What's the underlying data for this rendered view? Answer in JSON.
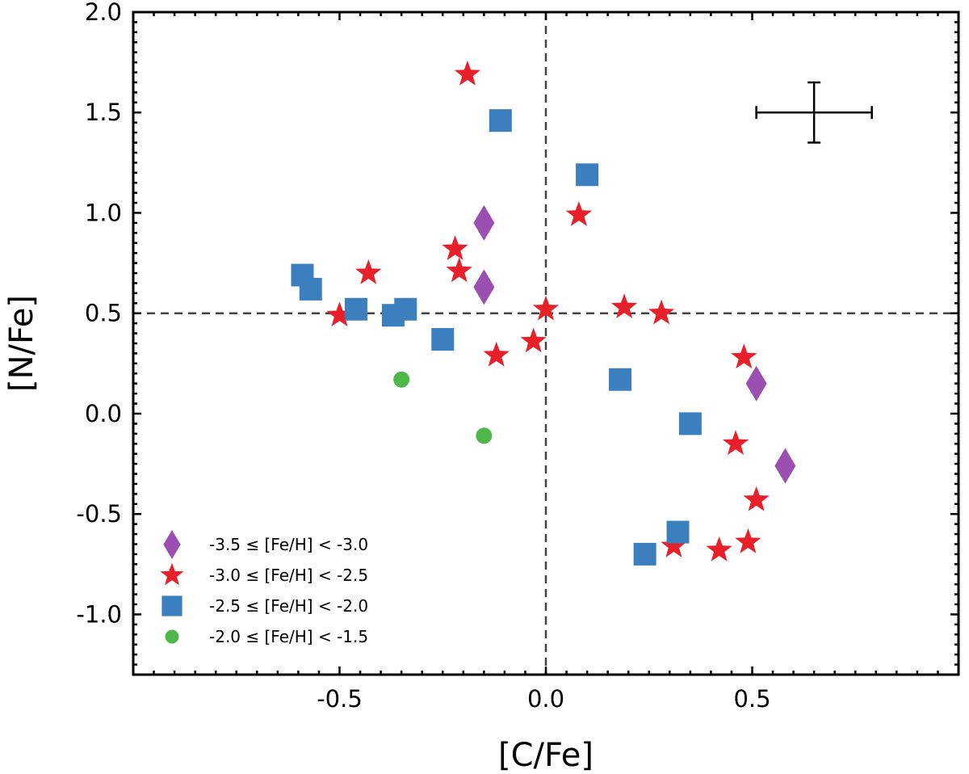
{
  "chart_data": {
    "type": "scatter",
    "title": "",
    "xlabel": "[C/Fe]",
    "ylabel": "[N/Fe]",
    "xlim": [
      -1.0,
      1.0
    ],
    "ylim": [
      -1.3,
      2.0
    ],
    "xticks": [
      -0.5,
      0.0,
      0.5
    ],
    "xtick_labels": [
      "-0.5",
      "0.0",
      "0.5"
    ],
    "yticks": [
      -1.0,
      -0.5,
      0.0,
      0.5,
      1.0,
      1.5,
      2.0
    ],
    "ytick_labels": [
      "-1.0",
      "-0.5",
      "0.0",
      "0.5",
      "1.0",
      "1.5",
      "2.0"
    ],
    "reference_lines": {
      "x": 0.0,
      "y": 0.5,
      "style": "dashed"
    },
    "error_bar": {
      "x": 0.65,
      "y": 1.5,
      "xerr": 0.14,
      "yerr": 0.15
    },
    "grid": false,
    "legend_position": "lower-left",
    "series": [
      {
        "name": "-3.5 ≤ [Fe/H] < -3.0",
        "marker": "diamond",
        "color": "#9b4fb0",
        "points": [
          {
            "x": -0.15,
            "y": 0.95
          },
          {
            "x": -0.15,
            "y": 0.63
          },
          {
            "x": 0.51,
            "y": 0.15
          },
          {
            "x": 0.58,
            "y": -0.26
          }
        ]
      },
      {
        "name": "-3.0 ≤ [Fe/H] < -2.5",
        "marker": "star",
        "color": "#e8202a",
        "points": [
          {
            "x": -0.19,
            "y": 1.69
          },
          {
            "x": 0.08,
            "y": 0.99
          },
          {
            "x": -0.22,
            "y": 0.82
          },
          {
            "x": -0.21,
            "y": 0.71
          },
          {
            "x": -0.43,
            "y": 0.7
          },
          {
            "x": -0.5,
            "y": 0.49
          },
          {
            "x": 0.0,
            "y": 0.52
          },
          {
            "x": 0.19,
            "y": 0.53
          },
          {
            "x": 0.28,
            "y": 0.5
          },
          {
            "x": -0.12,
            "y": 0.29
          },
          {
            "x": -0.03,
            "y": 0.36
          },
          {
            "x": 0.48,
            "y": 0.28
          },
          {
            "x": 0.46,
            "y": -0.15
          },
          {
            "x": 0.51,
            "y": -0.43
          },
          {
            "x": 0.31,
            "y": -0.66
          },
          {
            "x": 0.42,
            "y": -0.68
          },
          {
            "x": 0.49,
            "y": -0.64
          }
        ]
      },
      {
        "name": "-2.5 ≤ [Fe/H] < -2.0",
        "marker": "square",
        "color": "#3c7fbf",
        "points": [
          {
            "x": -0.11,
            "y": 1.46
          },
          {
            "x": 0.1,
            "y": 1.19
          },
          {
            "x": -0.59,
            "y": 0.69
          },
          {
            "x": -0.57,
            "y": 0.62
          },
          {
            "x": -0.46,
            "y": 0.52
          },
          {
            "x": -0.37,
            "y": 0.49
          },
          {
            "x": -0.34,
            "y": 0.52
          },
          {
            "x": -0.25,
            "y": 0.37
          },
          {
            "x": 0.18,
            "y": 0.17
          },
          {
            "x": 0.35,
            "y": -0.05
          },
          {
            "x": 0.32,
            "y": -0.59
          },
          {
            "x": 0.24,
            "y": -0.7
          }
        ]
      },
      {
        "name": "-2.0 ≤ [Fe/H] < -1.5",
        "marker": "circle",
        "color": "#4db847",
        "points": [
          {
            "x": -0.35,
            "y": 0.17
          },
          {
            "x": -0.15,
            "y": -0.11
          }
        ]
      }
    ]
  }
}
